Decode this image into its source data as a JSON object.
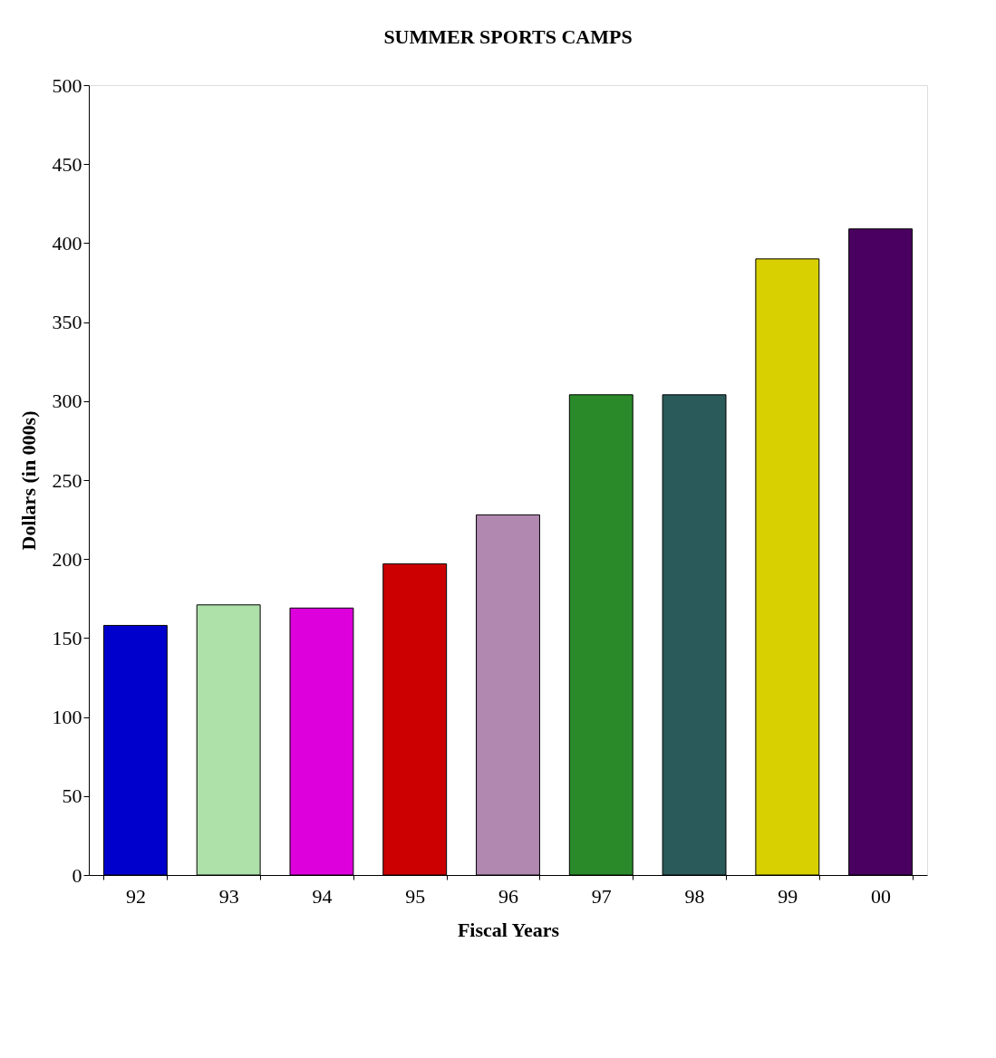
{
  "chart_data": {
    "type": "bar",
    "title": "SUMMER SPORTS CAMPS",
    "xlabel": "Fiscal Years",
    "ylabel": "Dollars (in 000s)",
    "categories": [
      "92",
      "93",
      "94",
      "95",
      "96",
      "97",
      "98",
      "99",
      "00"
    ],
    "values": [
      158,
      171,
      169,
      197,
      228,
      304,
      304,
      390,
      409
    ],
    "colors": [
      "#0000cc",
      "#aee0aa",
      "#dd00dd",
      "#cc0000",
      "#b088b0",
      "#2a8a2a",
      "#2a5a5a",
      "#d8d000",
      "#4a0060"
    ],
    "ylim": [
      0,
      500
    ],
    "yticks": [
      0,
      50,
      100,
      150,
      200,
      250,
      300,
      350,
      400,
      450,
      500
    ],
    "grid": false,
    "legend": false
  }
}
